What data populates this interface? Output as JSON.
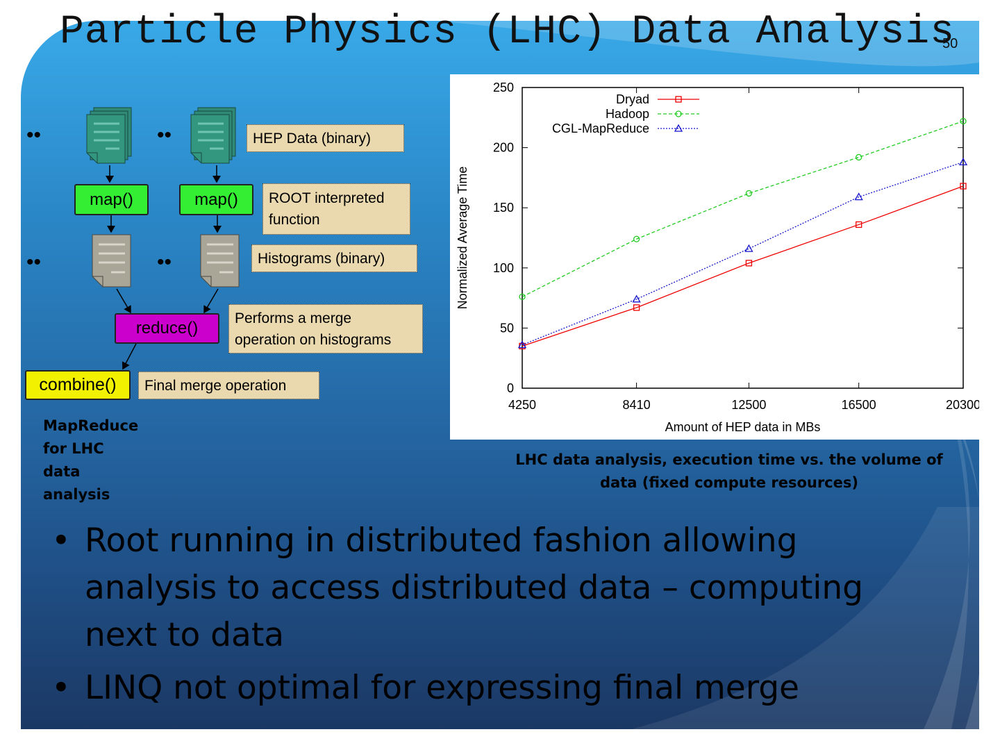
{
  "slide": {
    "title": "Particle Physics (LHC) Data Analysis",
    "slide_number": "50",
    "colors": {
      "accent_green": "#33ee33",
      "reduce_magenta": "#cc00cc",
      "combine_yellow": "#f2f200",
      "note_tan": "#ead9ae"
    }
  },
  "diagram": {
    "ellipsis": "••",
    "input_note": "HEP Data (binary)",
    "map_label": "map()",
    "map_note_line1": "ROOT interpreted",
    "map_note_line2": "function",
    "histogram_note": "Histograms (binary)",
    "reduce_label": "reduce()",
    "reduce_note_line1": "Performs a merge",
    "reduce_note_line2": "operation on histograms",
    "combine_label": "combine()",
    "combine_note": "Final merge operation",
    "caption": "MapReduce for LHC data analysis",
    "icons": [
      "document-stack-icon",
      "document-icon"
    ]
  },
  "chart_caption_line1": "LHC data analysis, execution time vs. the volume of",
  "chart_caption_line2": "data (fixed compute resources)",
  "bullets": [
    {
      "line1": "Root running in distributed fashion allowing",
      "line2": "analysis to access distributed data – computing",
      "line3": "next to data"
    },
    {
      "line1": "LINQ not optimal for expressing final merge"
    }
  ],
  "chart_data": {
    "type": "line",
    "title": "",
    "xlabel": "Amount of HEP data in MBs",
    "ylabel": "Normalized Average Time",
    "x": [
      4250,
      8410,
      12500,
      16500,
      20300
    ],
    "x_ticks": [
      "4250",
      "8410",
      "12500",
      "16500",
      "20300"
    ],
    "ylim": [
      0,
      250
    ],
    "y_ticks": [
      "0",
      "50",
      "100",
      "150",
      "200",
      "250"
    ],
    "legend_position": "top-left",
    "grid": false,
    "series": [
      {
        "name": "Dryad",
        "color": "#ee0000",
        "marker": "square",
        "dash": "solid",
        "values": [
          35,
          67,
          104,
          136,
          168
        ]
      },
      {
        "name": "Hadoop",
        "color": "#22cc22",
        "marker": "circle",
        "dash": "dashed",
        "values": [
          76,
          124,
          162,
          192,
          222
        ]
      },
      {
        "name": "CGL-MapReduce",
        "color": "#1515cc",
        "marker": "triangle",
        "dash": "dotted",
        "values": [
          36,
          74,
          116,
          159,
          188
        ]
      }
    ]
  }
}
